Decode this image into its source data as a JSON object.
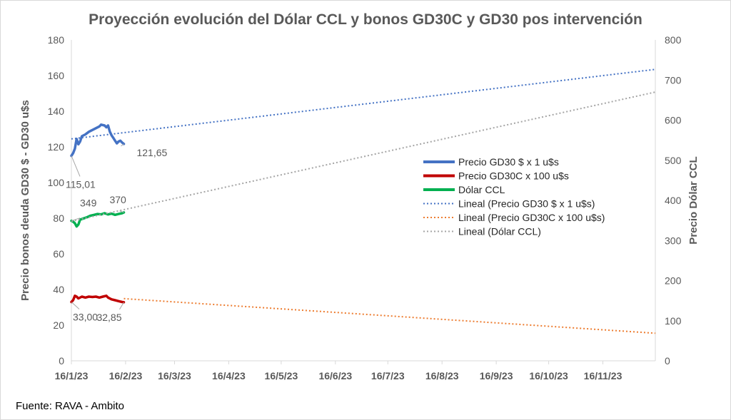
{
  "title": "Proyección evolución del Dólar CCL y bonos GD30C y GD30 pos intervención",
  "source": "Fuente: RAVA - Ambito",
  "chart_data": {
    "type": "line",
    "title": "Proyección evolución del Dólar CCL y bonos GD30C y GD30 pos intervención",
    "ylabel": "Precio bonos deuda GD30 $ - GD30 u$s",
    "y2label": "Precio Dólar CCL",
    "ylim": [
      0,
      180
    ],
    "y2lim": [
      0,
      800
    ],
    "yticks": [
      "0",
      "20",
      "40",
      "60",
      "80",
      "100",
      "120",
      "140",
      "160",
      "180"
    ],
    "y2ticks": [
      "0",
      "100",
      "200",
      "300",
      "400",
      "500",
      "600",
      "700",
      "800"
    ],
    "xlim": [
      "2023-01-16",
      "2023-12-16"
    ],
    "xticks": [
      "16/1/23",
      "16/2/23",
      "16/3/23",
      "16/4/23",
      "16/5/23",
      "16/6/23",
      "16/7/23",
      "16/8/23",
      "16/9/23",
      "16/10/23",
      "16/11/23"
    ],
    "grid": false,
    "legend_position": "right",
    "series": [
      {
        "name": "Precio GD30 $ x 1 u$s",
        "axis": "left",
        "color": "#4472c4",
        "style": "solid",
        "points": [
          [
            "2023-01-16",
            115.0
          ],
          [
            "2023-01-17",
            116.5
          ],
          [
            "2023-01-18",
            119.0
          ],
          [
            "2023-01-19",
            124.5
          ],
          [
            "2023-01-20",
            121.5
          ],
          [
            "2023-01-21",
            123.0
          ],
          [
            "2023-01-22",
            126.0
          ],
          [
            "2023-01-24",
            127.0
          ],
          [
            "2023-01-26",
            128.5
          ],
          [
            "2023-01-28",
            129.5
          ],
          [
            "2023-01-30",
            130.5
          ],
          [
            "2023-02-01",
            131.5
          ],
          [
            "2023-02-02",
            132.5
          ],
          [
            "2023-02-04",
            132.0
          ],
          [
            "2023-02-05",
            131.0
          ],
          [
            "2023-02-06",
            132.0
          ],
          [
            "2023-02-07",
            128.5
          ],
          [
            "2023-02-08",
            126.5
          ],
          [
            "2023-02-09",
            125.0
          ],
          [
            "2023-02-10",
            123.5
          ],
          [
            "2023-02-11",
            122.0
          ],
          [
            "2023-02-12",
            123.0
          ],
          [
            "2023-02-13",
            123.5
          ],
          [
            "2023-02-14",
            122.5
          ],
          [
            "2023-02-15",
            121.65
          ]
        ]
      },
      {
        "name": "Precio GD30C x 100 u$s",
        "axis": "left",
        "color": "#c00000",
        "style": "solid",
        "points": [
          [
            "2023-01-16",
            33.0
          ],
          [
            "2023-01-17",
            34.0
          ],
          [
            "2023-01-18",
            36.5
          ],
          [
            "2023-01-19",
            36.0
          ],
          [
            "2023-01-20",
            35.0
          ],
          [
            "2023-01-22",
            36.0
          ],
          [
            "2023-01-24",
            35.5
          ],
          [
            "2023-01-26",
            36.0
          ],
          [
            "2023-01-28",
            35.8
          ],
          [
            "2023-01-30",
            36.0
          ],
          [
            "2023-02-01",
            35.5
          ],
          [
            "2023-02-03",
            36.0
          ],
          [
            "2023-02-05",
            36.5
          ],
          [
            "2023-02-06",
            35.5
          ],
          [
            "2023-02-08",
            34.5
          ],
          [
            "2023-02-10",
            34.0
          ],
          [
            "2023-02-12",
            33.5
          ],
          [
            "2023-02-14",
            33.0
          ],
          [
            "2023-02-15",
            32.85
          ]
        ]
      },
      {
        "name": "Dólar CCL",
        "axis": "right",
        "color": "#00b050",
        "style": "solid",
        "points": [
          [
            "2023-01-16",
            349
          ],
          [
            "2023-01-17",
            347
          ],
          [
            "2023-01-18",
            343
          ],
          [
            "2023-01-19",
            335
          ],
          [
            "2023-01-20",
            340
          ],
          [
            "2023-01-21",
            352
          ],
          [
            "2023-01-23",
            355
          ],
          [
            "2023-01-25",
            358
          ],
          [
            "2023-01-27",
            362
          ],
          [
            "2023-01-29",
            364
          ],
          [
            "2023-01-31",
            366
          ],
          [
            "2023-02-02",
            365
          ],
          [
            "2023-02-04",
            368
          ],
          [
            "2023-02-06",
            365
          ],
          [
            "2023-02-08",
            367
          ],
          [
            "2023-02-10",
            364
          ],
          [
            "2023-02-12",
            366
          ],
          [
            "2023-02-14",
            368
          ],
          [
            "2023-02-15",
            370
          ]
        ]
      },
      {
        "name": "Lineal (Precio GD30 $ x 1 u$s)",
        "axis": "left",
        "color": "#4472c4",
        "style": "dotted",
        "points": [
          [
            "2023-01-16",
            124.5
          ],
          [
            "2023-12-16",
            163.5
          ]
        ]
      },
      {
        "name": "Lineal (Precio GD30C x 100 u$s)",
        "axis": "left",
        "color": "#ed7d31",
        "style": "dotted",
        "points": [
          [
            "2023-02-15",
            34.9
          ],
          [
            "2023-12-16",
            15.5
          ]
        ]
      },
      {
        "name": "Lineal (Dólar CCL)",
        "axis": "right",
        "color": "#a5a5a5",
        "style": "dotted",
        "points": [
          [
            "2023-01-16",
            348
          ],
          [
            "2023-12-16",
            670
          ]
        ]
      }
    ],
    "annotations": [
      {
        "text": "121,65",
        "x": "2023-02-15",
        "y": 121.65,
        "axis": "left"
      },
      {
        "text": "115,01",
        "x": "2023-01-16",
        "y": 115.01,
        "axis": "left"
      },
      {
        "text": "349",
        "x": "2023-01-16",
        "y": 349,
        "axis": "right"
      },
      {
        "text": "370",
        "x": "2023-02-15",
        "y": 370,
        "axis": "right"
      },
      {
        "text": "33,00",
        "x": "2023-01-16",
        "y": 33.0,
        "axis": "left"
      },
      {
        "text": "32,85",
        "x": "2023-02-15",
        "y": 32.85,
        "axis": "left"
      }
    ]
  }
}
